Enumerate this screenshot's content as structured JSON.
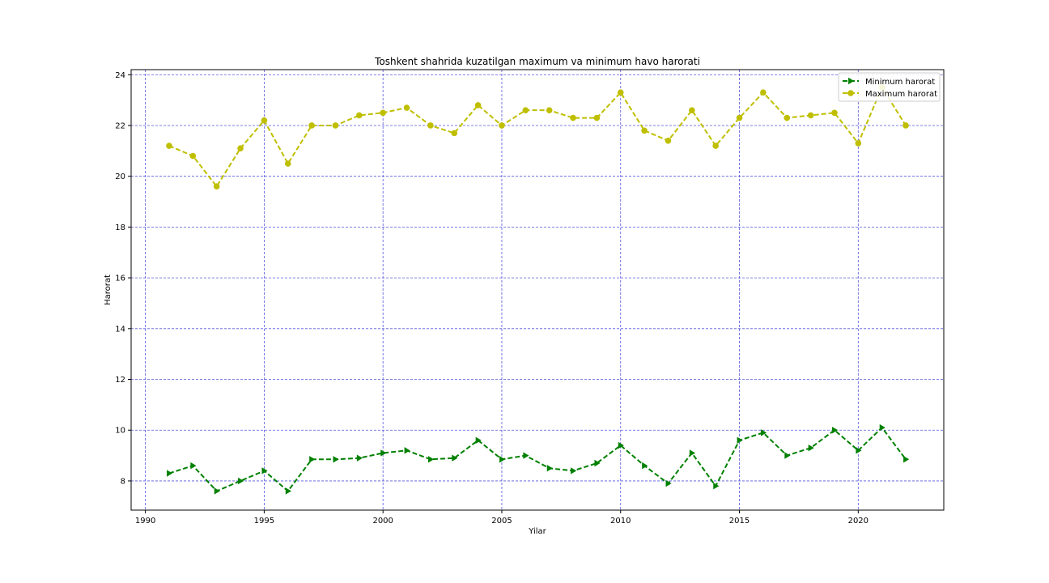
{
  "chart_data": {
    "type": "line",
    "title": "Toshkent shahrida kuzatilgan maximum va minimum havo harorati",
    "xlabel": "Yilar",
    "ylabel": "Harorat",
    "xlim": [
      1989.4,
      2023.6
    ],
    "ylim": [
      6.85,
      24.2
    ],
    "x_ticks": [
      1990,
      1995,
      2000,
      2005,
      2010,
      2015,
      2020
    ],
    "y_ticks": [
      8,
      10,
      12,
      14,
      16,
      18,
      20,
      22,
      24
    ],
    "grid": true,
    "grid_color": "#5555dd",
    "legend_position": "upper right",
    "x": [
      1991,
      1992,
      1993,
      1994,
      1995,
      1996,
      1997,
      1998,
      1999,
      2000,
      2001,
      2002,
      2003,
      2004,
      2005,
      2006,
      2007,
      2008,
      2009,
      2010,
      2011,
      2012,
      2013,
      2014,
      2015,
      2016,
      2017,
      2018,
      2019,
      2020,
      2021,
      2022
    ],
    "series": [
      {
        "name": "Minimum harorat",
        "color": "#008000",
        "marker": "triangle-right",
        "line_style": "dashed",
        "values": [
          8.3,
          8.6,
          7.6,
          8.0,
          8.4,
          7.6,
          8.85,
          8.85,
          8.9,
          9.1,
          9.2,
          8.85,
          8.9,
          9.6,
          8.85,
          9.0,
          8.5,
          8.4,
          8.7,
          9.4,
          8.6,
          7.9,
          9.1,
          7.8,
          9.6,
          9.9,
          9.0,
          9.3,
          10.0,
          9.2,
          10.1,
          8.85
        ]
      },
      {
        "name": "Maximum harorat",
        "color": "#bfbf00",
        "marker": "circle",
        "line_style": "dashed",
        "values": [
          21.2,
          20.8,
          19.6,
          21.1,
          22.2,
          20.5,
          22.0,
          22.0,
          22.4,
          22.5,
          22.7,
          22.0,
          21.7,
          22.8,
          22.0,
          22.6,
          22.6,
          22.3,
          22.3,
          23.3,
          21.8,
          21.4,
          22.6,
          21.2,
          22.3,
          23.3,
          22.3,
          22.4,
          22.5,
          21.3,
          23.5,
          22.0
        ]
      }
    ]
  }
}
